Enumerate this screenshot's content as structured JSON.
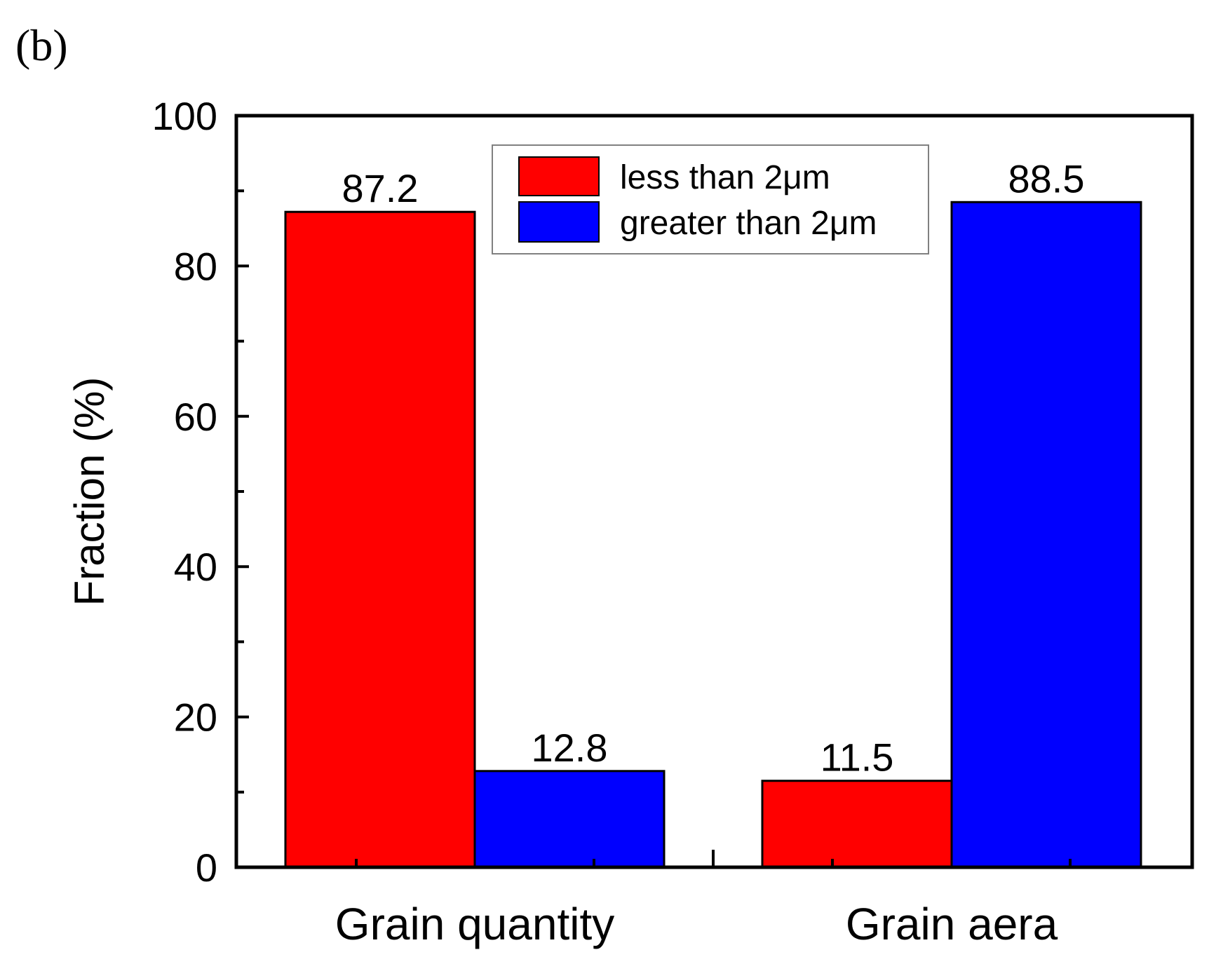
{
  "chart_data": {
    "type": "bar",
    "panel_label": "(b)",
    "categories": [
      "Grain quantity",
      "Grain aera"
    ],
    "series": [
      {
        "name": "less than 2μm",
        "color": "#ff0000",
        "values": [
          87.2,
          11.5
        ]
      },
      {
        "name": "greater than 2μm",
        "color": "#0000ff",
        "values": [
          12.8,
          88.5
        ]
      }
    ],
    "ylabel": "Fraction (%)",
    "xlabel": "",
    "ylim": [
      0,
      100
    ],
    "yticks": [
      0,
      20,
      40,
      60,
      80,
      100
    ],
    "ytick_labels": [
      "0",
      "20",
      "40",
      "60",
      "80",
      "100"
    ],
    "data_labels": [
      [
        "87.2",
        "11.5"
      ],
      [
        "12.8",
        "88.5"
      ]
    ],
    "grid": false,
    "legend_position": "top-center"
  }
}
